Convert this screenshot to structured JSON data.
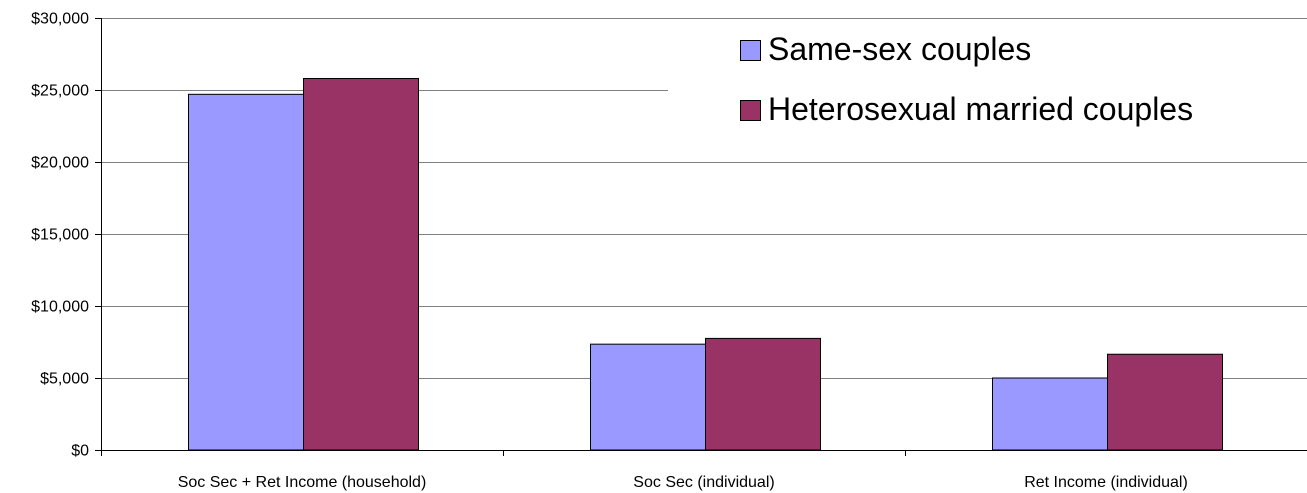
{
  "chart_data": {
    "type": "bar",
    "title": "",
    "xlabel": "",
    "ylabel": "",
    "categories": [
      "Soc Sec + Ret Income (household)",
      "Soc Sec (individual)",
      "Ret Income (individual)"
    ],
    "series": [
      {
        "name": "Same-sex couples",
        "color": "#9999ff",
        "values": [
          24700,
          7350,
          5000
        ]
      },
      {
        "name": "Heterosexual married couples",
        "color": "#993366",
        "values": [
          25800,
          7750,
          6650
        ]
      }
    ],
    "ylim": [
      0,
      30000
    ],
    "yticks": [
      0,
      5000,
      10000,
      15000,
      20000,
      25000,
      30000
    ],
    "ytick_labels": [
      "$0",
      "$5,000",
      "$10,000",
      "$15,000",
      "$20,000",
      "$25,000",
      "$30,000"
    ],
    "grid": true,
    "legend_position": "top-right"
  }
}
